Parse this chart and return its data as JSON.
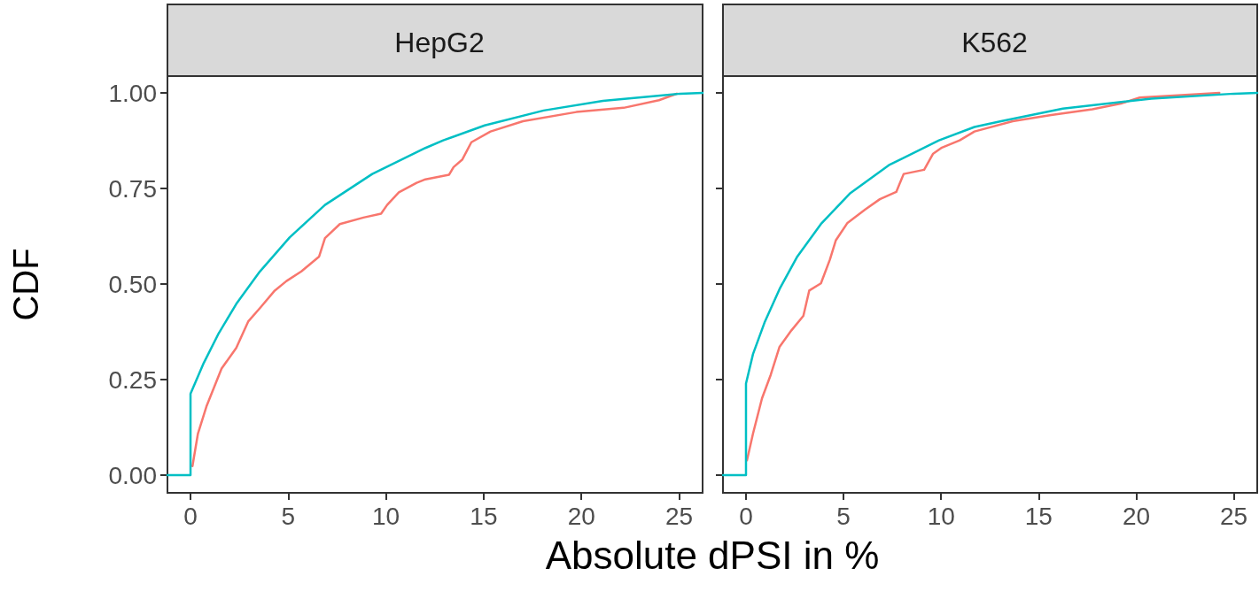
{
  "chart_data": [
    {
      "type": "line",
      "title": "HepG2",
      "xlabel": "Absolute dPSI in %",
      "ylabel": "CDF",
      "grid": false,
      "marker": "none",
      "line_style": "solid",
      "xlim": [
        -1.18,
        26.2
      ],
      "ylim": [
        -0.046,
        1.044
      ],
      "xticks": [
        0,
        5,
        10,
        15,
        20,
        25
      ],
      "yticks": [
        {
          "value": 0,
          "label": "0.00"
        },
        {
          "value": 0.25,
          "label": "0.25"
        },
        {
          "value": 0.5,
          "label": "0.50"
        },
        {
          "value": 0.75,
          "label": "0.75"
        },
        {
          "value": 1,
          "label": "1.00"
        }
      ],
      "series": [
        {
          "color": "#f8766d",
          "x": [
            0.1,
            0.38,
            0.83,
            1.59,
            2.34,
            2.95,
            3.55,
            4.31,
            4.91,
            5.67,
            6.58,
            6.88,
            7.64,
            8.85,
            9.75,
            10.06,
            10.66,
            11.57,
            12.02,
            13.23,
            13.46,
            13.91,
            14.37,
            15.35,
            17.01,
            19.74,
            22.16,
            23.97,
            24.88
          ],
          "values": [
            0.024,
            0.109,
            0.182,
            0.279,
            0.333,
            0.402,
            0.437,
            0.483,
            0.508,
            0.533,
            0.572,
            0.62,
            0.657,
            0.674,
            0.684,
            0.707,
            0.74,
            0.765,
            0.774,
            0.786,
            0.806,
            0.826,
            0.871,
            0.899,
            0.926,
            0.95,
            0.961,
            0.981,
            0.998
          ]
        },
        {
          "color": "#00bfc4",
          "x": [
            -1.18,
            0,
            0,
            0.68,
            1.44,
            2.34,
            3.55,
            5.07,
            6.88,
            9.3,
            12.02,
            12.93,
            15.05,
            18.07,
            21.1,
            25.04,
            26.2
          ],
          "values": [
            0,
            0,
            0.213,
            0.294,
            0.371,
            0.448,
            0.533,
            0.622,
            0.707,
            0.788,
            0.856,
            0.876,
            0.915,
            0.954,
            0.979,
            0.998,
            1.0
          ]
        }
      ]
    },
    {
      "type": "line",
      "title": "K562",
      "grid": false,
      "marker": "none",
      "line_style": "solid",
      "tick_labels": "x",
      "xlim": [
        -1.18,
        26.2
      ],
      "ylim": [
        -0.046,
        1.044
      ],
      "xticks": [
        0,
        5,
        10,
        15,
        20,
        25
      ],
      "yticks": [
        {
          "value": 0,
          "label": null
        },
        {
          "value": 0.25,
          "label": null
        },
        {
          "value": 0.5,
          "label": null
        },
        {
          "value": 0.75,
          "label": null
        },
        {
          "value": 1,
          "label": null
        }
      ],
      "series": [
        {
          "color": "#f8766d",
          "x": [
            0.05,
            0.36,
            0.82,
            1.27,
            1.72,
            2.33,
            2.94,
            3.24,
            3.84,
            4.3,
            4.6,
            5.2,
            6.11,
            6.86,
            7.7,
            8.08,
            9.13,
            9.59,
            10.04,
            10.95,
            11.71,
            13.67,
            15.64,
            17.75,
            19.27,
            20.18,
            24.26
          ],
          "values": [
            0.039,
            0.109,
            0.201,
            0.263,
            0.336,
            0.379,
            0.417,
            0.483,
            0.502,
            0.564,
            0.614,
            0.66,
            0.695,
            0.722,
            0.741,
            0.788,
            0.799,
            0.841,
            0.857,
            0.876,
            0.899,
            0.926,
            0.942,
            0.957,
            0.973,
            0.988,
            1.0
          ]
        },
        {
          "color": "#00bfc4",
          "x": [
            -1.18,
            0,
            0,
            0.36,
            0.97,
            1.72,
            2.63,
            3.84,
            5.35,
            7.32,
            9.89,
            11.71,
            13.07,
            16.24,
            20.78,
            25.01,
            26.2
          ],
          "values": [
            0,
            0,
            0.24,
            0.317,
            0.402,
            0.487,
            0.572,
            0.657,
            0.738,
            0.811,
            0.876,
            0.911,
            0.926,
            0.959,
            0.985,
            0.998,
            1.0
          ]
        }
      ]
    }
  ]
}
